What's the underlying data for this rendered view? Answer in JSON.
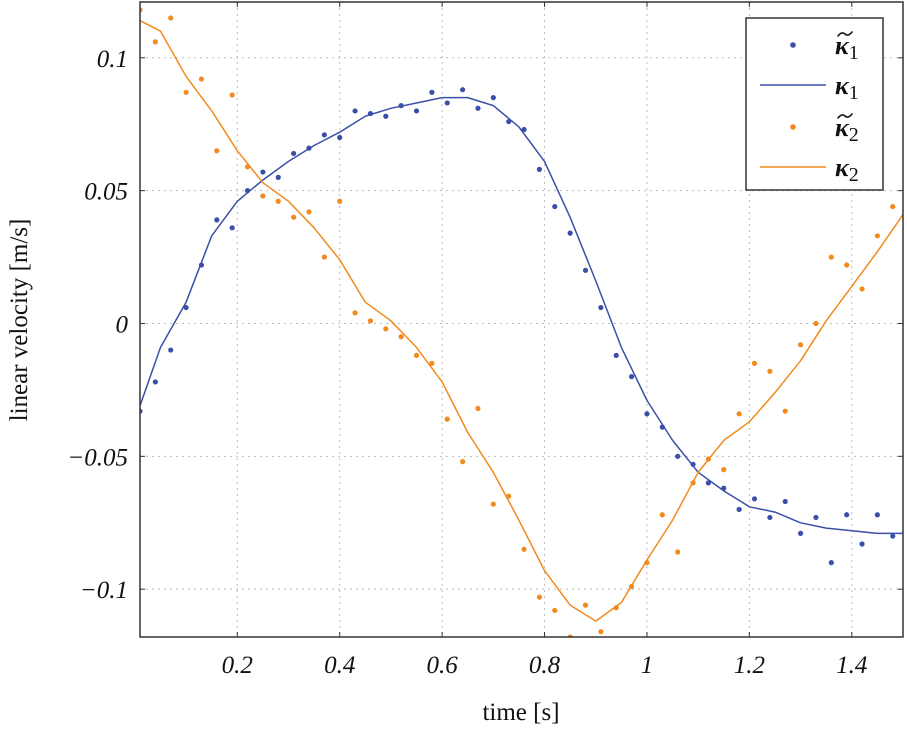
{
  "chart_data": {
    "type": "line",
    "title": "",
    "xlabel": "time [s]",
    "ylabel": "linear velocity [m/s]",
    "xlim": [
      0.01,
      1.5
    ],
    "ylim": [
      -0.118,
      0.121
    ],
    "grid": true,
    "legend_position": "top-right",
    "xticks": [
      0.2,
      0.4,
      0.6,
      0.8,
      1.0,
      1.2,
      1.4
    ],
    "xtick_labels": [
      "0.2",
      "0.4",
      "0.6",
      "0.8",
      "1",
      "1.2",
      "1.4"
    ],
    "yticks": [
      0.1,
      0.05,
      0,
      -0.05,
      -0.1
    ],
    "ytick_labels": [
      "0.1",
      "0.05",
      "0",
      "−0.05",
      "−0.1"
    ],
    "colors": {
      "series1": "#3b4fa8",
      "series2": "#f28a1e"
    },
    "series": [
      {
        "name": "κ̃₁",
        "kind": "scatter",
        "color": "#3b4fa8",
        "x": [
          0.01,
          0.04,
          0.07,
          0.1,
          0.13,
          0.16,
          0.19,
          0.22,
          0.25,
          0.28,
          0.31,
          0.34,
          0.37,
          0.4,
          0.43,
          0.46,
          0.49,
          0.52,
          0.55,
          0.58,
          0.61,
          0.64,
          0.67,
          0.7,
          0.73,
          0.76,
          0.79,
          0.82,
          0.85,
          0.88,
          0.91,
          0.94,
          0.97,
          1.0,
          1.03,
          1.06,
          1.09,
          1.12,
          1.15,
          1.18,
          1.21,
          1.24,
          1.27,
          1.3,
          1.33,
          1.36,
          1.39,
          1.42,
          1.45,
          1.48
        ],
        "y": [
          -0.033,
          -0.022,
          -0.01,
          0.006,
          0.022,
          0.039,
          0.036,
          0.05,
          0.057,
          0.055,
          0.064,
          0.066,
          0.071,
          0.07,
          0.08,
          0.079,
          0.078,
          0.082,
          0.08,
          0.087,
          0.083,
          0.088,
          0.081,
          0.085,
          0.076,
          0.073,
          0.058,
          0.044,
          0.034,
          0.02,
          0.006,
          -0.012,
          -0.02,
          -0.034,
          -0.039,
          -0.05,
          -0.053,
          -0.06,
          -0.062,
          -0.07,
          -0.066,
          -0.073,
          -0.067,
          -0.079,
          -0.073,
          -0.09,
          -0.072,
          -0.083,
          -0.072,
          -0.08
        ]
      },
      {
        "name": "κ₁",
        "kind": "line",
        "color": "#3b4fa8",
        "x": [
          0.01,
          0.05,
          0.1,
          0.15,
          0.2,
          0.25,
          0.3,
          0.35,
          0.4,
          0.45,
          0.5,
          0.55,
          0.6,
          0.65,
          0.7,
          0.75,
          0.8,
          0.85,
          0.9,
          0.95,
          1.0,
          1.05,
          1.1,
          1.15,
          1.2,
          1.25,
          1.3,
          1.35,
          1.4,
          1.45,
          1.5
        ],
        "y": [
          -0.031,
          -0.009,
          0.008,
          0.033,
          0.046,
          0.054,
          0.061,
          0.067,
          0.072,
          0.078,
          0.081,
          0.083,
          0.085,
          0.085,
          0.082,
          0.074,
          0.061,
          0.04,
          0.016,
          -0.009,
          -0.029,
          -0.044,
          -0.056,
          -0.063,
          -0.069,
          -0.071,
          -0.075,
          -0.077,
          -0.078,
          -0.079,
          -0.079
        ]
      },
      {
        "name": "κ̃₂",
        "kind": "scatter",
        "color": "#f28a1e",
        "x": [
          0.01,
          0.04,
          0.07,
          0.1,
          0.13,
          0.16,
          0.19,
          0.22,
          0.25,
          0.28,
          0.31,
          0.34,
          0.37,
          0.4,
          0.43,
          0.46,
          0.49,
          0.52,
          0.55,
          0.58,
          0.61,
          0.64,
          0.67,
          0.7,
          0.73,
          0.76,
          0.79,
          0.82,
          0.85,
          0.88,
          0.91,
          0.94,
          0.97,
          1.0,
          1.03,
          1.06,
          1.09,
          1.12,
          1.15,
          1.18,
          1.21,
          1.24,
          1.27,
          1.3,
          1.33,
          1.36,
          1.39,
          1.42,
          1.45,
          1.48
        ],
        "y": [
          0.118,
          0.106,
          0.115,
          0.087,
          0.092,
          0.065,
          0.086,
          0.059,
          0.048,
          0.046,
          0.04,
          0.042,
          0.025,
          0.046,
          0.004,
          0.001,
          -0.002,
          -0.005,
          -0.012,
          -0.015,
          -0.036,
          -0.052,
          -0.032,
          -0.068,
          -0.065,
          -0.085,
          -0.103,
          -0.108,
          -0.118,
          -0.106,
          -0.116,
          -0.107,
          -0.099,
          -0.09,
          -0.072,
          -0.086,
          -0.06,
          -0.051,
          -0.055,
          -0.034,
          -0.015,
          -0.018,
          -0.033,
          -0.008,
          0.0,
          0.025,
          0.022,
          0.013,
          0.033,
          0.044
        ]
      },
      {
        "name": "κ₂",
        "kind": "line",
        "color": "#f28a1e",
        "x": [
          0.01,
          0.05,
          0.1,
          0.15,
          0.2,
          0.25,
          0.3,
          0.35,
          0.4,
          0.45,
          0.5,
          0.55,
          0.6,
          0.65,
          0.7,
          0.75,
          0.8,
          0.85,
          0.9,
          0.95,
          1.0,
          1.05,
          1.1,
          1.15,
          1.2,
          1.25,
          1.3,
          1.35,
          1.4,
          1.45,
          1.5
        ],
        "y": [
          0.114,
          0.11,
          0.093,
          0.08,
          0.065,
          0.053,
          0.046,
          0.036,
          0.024,
          0.008,
          0.001,
          -0.009,
          -0.022,
          -0.041,
          -0.056,
          -0.074,
          -0.093,
          -0.106,
          -0.112,
          -0.105,
          -0.089,
          -0.074,
          -0.056,
          -0.044,
          -0.037,
          -0.026,
          -0.014,
          0.001,
          0.014,
          0.027,
          0.041
        ]
      }
    ],
    "legend": [
      {
        "base": "κ",
        "sub": "1",
        "tilde": true
      },
      {
        "base": "κ",
        "sub": "1",
        "tilde": false
      },
      {
        "base": "κ",
        "sub": "2",
        "tilde": true
      },
      {
        "base": "κ",
        "sub": "2",
        "tilde": false
      }
    ]
  }
}
